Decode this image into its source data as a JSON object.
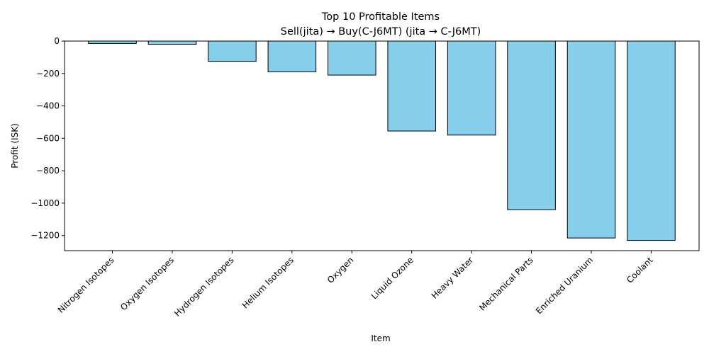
{
  "chart_data": {
    "type": "bar",
    "title": "Top 10 Profitable Items",
    "subtitle": "Sell(jita) → Buy(C-J6MT) (jita → C-J6MT)",
    "xlabel": "Item",
    "ylabel": "Profit (ISK)",
    "categories": [
      "Nitrogen Isotopes",
      "Oxygen Isotopes",
      "Hydrogen Isotopes",
      "Helium Isotopes",
      "Oxygen",
      "Liquid Ozone",
      "Heavy Water",
      "Mechanical Parts",
      "Enriched Uranium",
      "Coolant"
    ],
    "values": [
      -15,
      -20,
      -125,
      -190,
      -210,
      -555,
      -580,
      -1040,
      -1215,
      -1230
    ],
    "ylim": [
      -1293,
      0
    ],
    "yticks": [
      0,
      -200,
      -400,
      -600,
      -800,
      -1000,
      -1200
    ],
    "ytick_labels": [
      "0",
      "−200",
      "−400",
      "−600",
      "−800",
      "−1000",
      "−1200"
    ],
    "bar_color": "#87ceeb",
    "edge_color": "#000000",
    "grid": false,
    "legend": "none"
  }
}
